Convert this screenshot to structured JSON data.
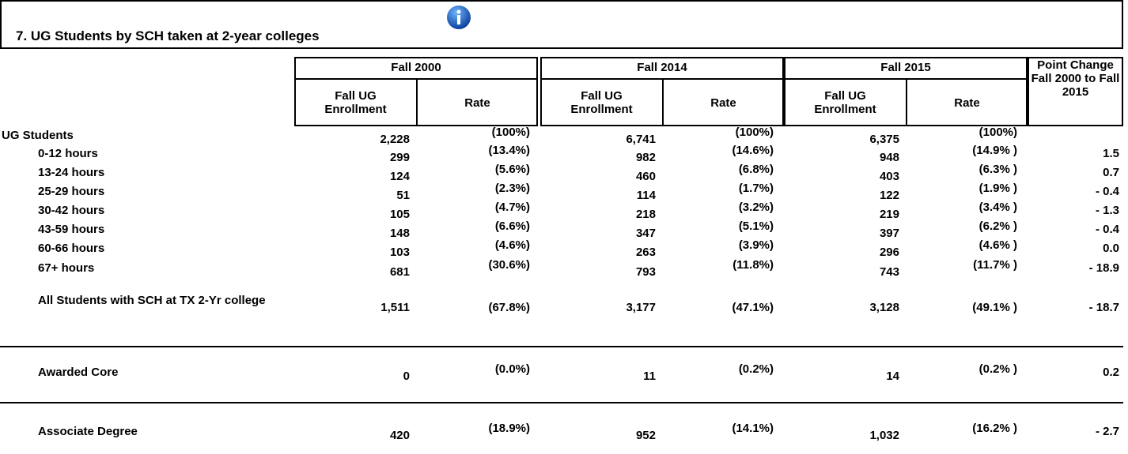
{
  "header": {
    "title": "7. UG Students by SCH taken at 2-year colleges"
  },
  "table": {
    "groups": [
      "Fall 2000",
      "Fall 2014",
      "Fall 2015"
    ],
    "subheaders": [
      "Fall UG Enrollment",
      "Rate"
    ],
    "change_header": "Point Change Fall 2000 to Fall 2015",
    "rows": [
      {
        "label": "UG Students",
        "cells": [
          "2,228",
          "(100%)",
          "6,741",
          "(100%)",
          "6,375",
          "(100%)"
        ]
      },
      {
        "label": "0-12 hours",
        "cells": [
          "299",
          "(13.4%)",
          "982",
          "(14.6%)",
          "948",
          "(14.9% )"
        ],
        "change": "1.5"
      },
      {
        "label": "13-24 hours",
        "cells": [
          "124",
          "(5.6%)",
          "460",
          "(6.8%)",
          "403",
          "(6.3% )"
        ],
        "change": "0.7"
      },
      {
        "label": "25-29 hours",
        "cells": [
          "51",
          "(2.3%)",
          "114",
          "(1.7%)",
          "122",
          "(1.9% )"
        ],
        "change": "- 0.4"
      },
      {
        "label": "30-42 hours",
        "cells": [
          "105",
          "(4.7%)",
          "218",
          "(3.2%)",
          "219",
          "(3.4% )"
        ],
        "change": "- 1.3"
      },
      {
        "label": "43-59 hours",
        "cells": [
          "148",
          "(6.6%)",
          "347",
          "(5.1%)",
          "397",
          "(6.2% )"
        ],
        "change": "- 0.4"
      },
      {
        "label": "60-66 hours",
        "cells": [
          "103",
          "(4.6%)",
          "263",
          "(3.9%)",
          "296",
          "(4.6% )"
        ],
        "change": "0.0"
      },
      {
        "label": "67+ hours",
        "cells": [
          "681",
          "(30.6%)",
          "793",
          "(11.8%)",
          "743",
          "(11.7% )"
        ],
        "change": "- 18.9"
      },
      {
        "label": "All Students with SCH at TX 2-Yr college",
        "cells": [
          "1,511",
          "(67.8%)",
          "3,177",
          "(47.1%)",
          "3,128",
          "(49.1% )"
        ],
        "change": "- 18.7"
      },
      {
        "label": "Awarded Core",
        "cells": [
          "0",
          "(0.0%)",
          "11",
          "(0.2%)",
          "14",
          "(0.2% )"
        ],
        "change": "0.2"
      },
      {
        "label": "Associate Degree",
        "cells": [
          "420",
          "(18.9%)",
          "952",
          "(14.1%)",
          "1,032",
          "(16.2% )"
        ],
        "change": "- 2.7"
      }
    ]
  }
}
